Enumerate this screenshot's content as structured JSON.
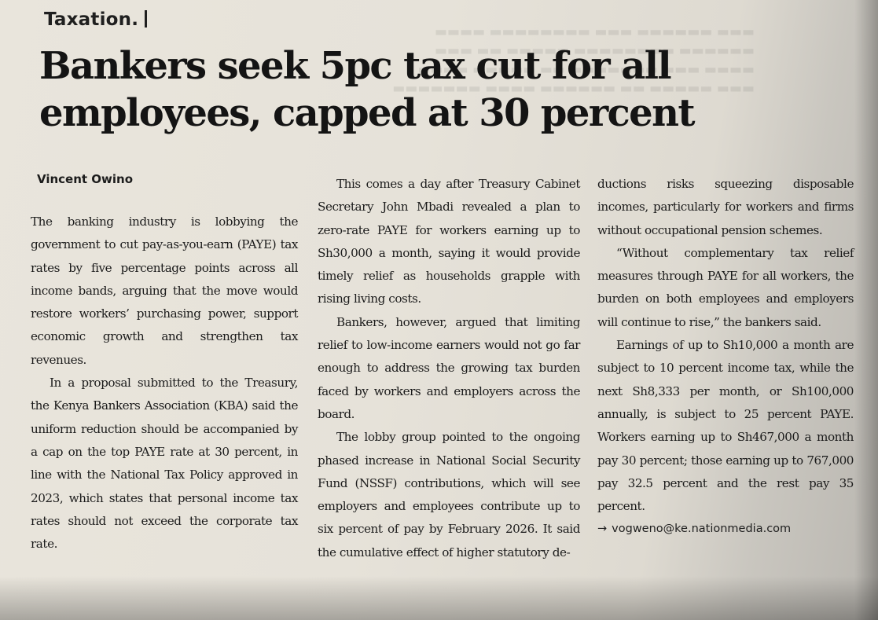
{
  "section": "Taxation.",
  "headline": "Bankers seek 5pc tax cut for all employees, capped at 30 percent",
  "byline": "Vincent Owino",
  "columns": {
    "col1": {
      "p1": "The banking industry is lobbying the government to cut pay-as-you-earn (PAYE) tax rates by five percentage points across all income bands, arguing that the move would restore workers’ purchasing power, support economic growth and strengthen tax revenues.",
      "p2": "In a proposal submitted to the Treasury, the Kenya Bankers Association (KBA) said the uniform reduction should be accompanied by a cap on the top PAYE rate at 30 percent, in line with the National Tax Policy approved in 2023, which states that personal income tax rates should not exceed the corporate tax rate."
    },
    "col2": {
      "p1": "This comes a day after Treasury Cabinet Secretary John Mbadi revealed a plan to zero-rate PAYE for workers earning up to Sh30,000 a month, saying it would provide timely relief as households grapple with rising living costs.",
      "p2": "Bankers, however, argued that limiting relief to low-income earners would not go far enough to address the growing tax burden faced by workers and employers across the board.",
      "p3": "The lobby group pointed to the ongoing phased increase in National Social Security Fund (NSSF) contributions, which will see employers and employees contribute up to six percent of pay by February 2026. It said the cumulative effect of higher statutory de-"
    },
    "col3": {
      "p1": "ductions risks squeezing disposable incomes, particularly for workers and firms without occupational pension schemes.",
      "p2": "“Without complementary tax relief measures through PAYE for all workers, the burden on both employees and employers will continue to rise,” the bankers said.",
      "p3": "Earnings of up to Sh10,000 a month are subject to 10 percent income tax, while the next Sh8,333 per month, or Sh100,000 annually, is subject to 25 percent PAYE. Workers earning up to Sh467,000 a month pay 30 percent; those earning up to 767,000 pay 32.5 percent and the rest pay 35 percent.",
      "email": "vogweno@ke.nationmedia.com"
    }
  },
  "colors": {
    "paper": "#e6e2d9",
    "ink": "#1b1b1b"
  }
}
